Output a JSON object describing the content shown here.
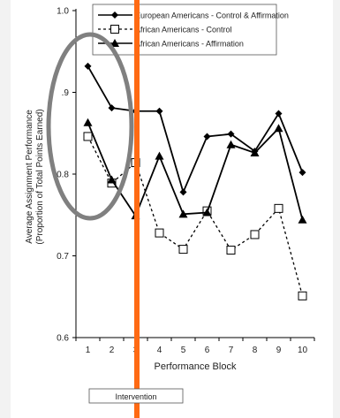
{
  "chart_data": {
    "type": "line",
    "title": "",
    "xlabel": "Performance Block",
    "ylabel": [
      "Average Assignment Performance",
      "(Proportion of Total Points Earned)"
    ],
    "x": [
      1,
      2,
      3,
      4,
      5,
      6,
      7,
      8,
      9,
      10
    ],
    "x_tick_labels": [
      "1",
      "2",
      "3",
      "4",
      "5",
      "6",
      "7",
      "8",
      "9",
      "10"
    ],
    "ylim": [
      0.6,
      1.0
    ],
    "y_ticks": [
      0.6,
      0.7,
      0.8,
      0.9,
      1.0
    ],
    "y_tick_labels": [
      "0.6",
      "0.7",
      "0.8",
      ".9",
      "1.0"
    ],
    "grid": false,
    "legend_position": "top-right",
    "series": [
      {
        "name": "European Americans - Control & Affirmation",
        "marker": "filled-diamond",
        "line_style": "solid",
        "values": [
          0.932,
          0.881,
          0.877,
          0.877,
          0.778,
          0.846,
          0.849,
          0.828,
          0.874,
          0.802
        ]
      },
      {
        "name": "African Americans - Control",
        "marker": "open-square",
        "line_style": "dashed",
        "values": [
          0.846,
          0.789,
          0.814,
          0.728,
          0.708,
          0.755,
          0.707,
          0.726,
          0.758,
          0.651
        ]
      },
      {
        "name": "African Americans - Affirmation",
        "marker": "filled-triangle",
        "line_style": "solid",
        "values": [
          0.863,
          0.793,
          0.749,
          0.822,
          0.751,
          0.753,
          0.836,
          0.826,
          0.856,
          0.744
        ]
      }
    ],
    "annotations": {
      "intervention_label": "Intervention",
      "intervention_line_color": "#ff6a13",
      "highlight_ellipse_color": "#808080"
    }
  }
}
